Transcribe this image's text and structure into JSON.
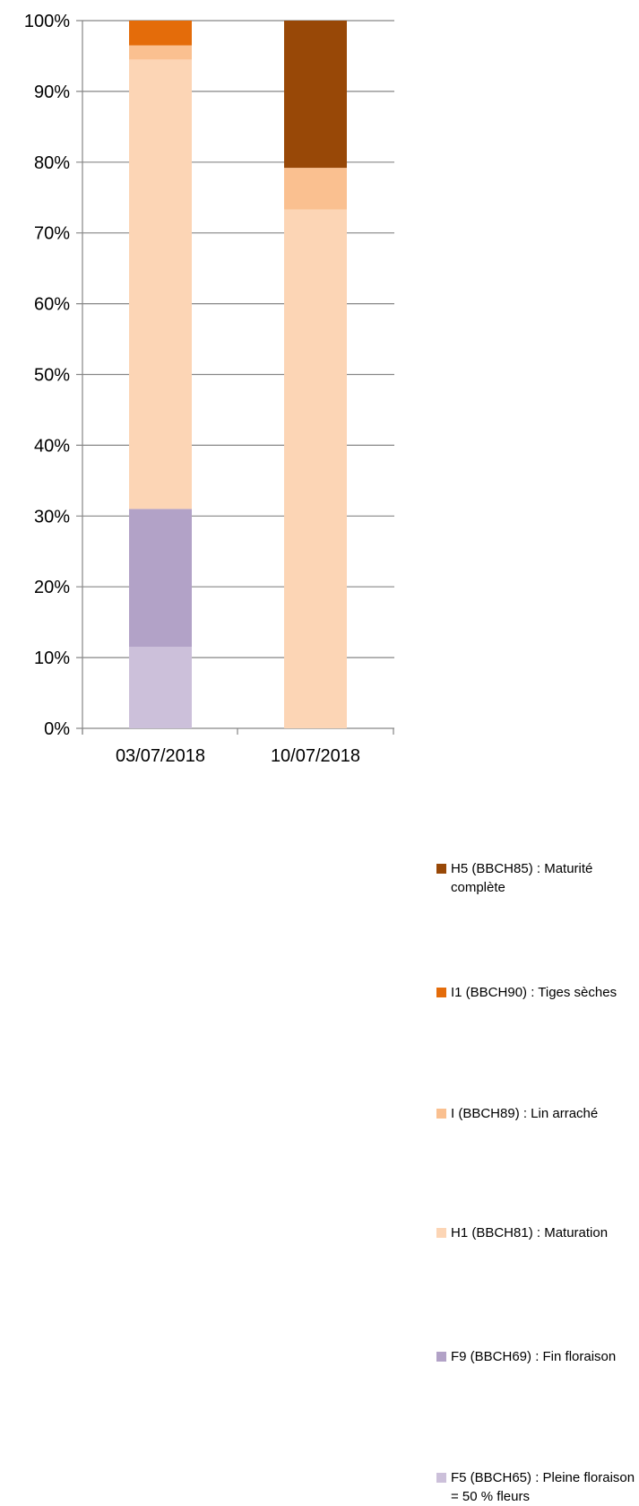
{
  "chart_data": {
    "type": "bar",
    "stacked": true,
    "percent": true,
    "categories": [
      "03/07/2018",
      "10/07/2018"
    ],
    "series": [
      {
        "name": "F5 (BBCH65) : Pleine floraison = 50 % fleurs",
        "color": "#ccc0da",
        "values": [
          11.5,
          0
        ]
      },
      {
        "name": "F9 (BBCH69) : Fin floraison",
        "color": "#b2a2c7",
        "values": [
          19.5,
          0
        ]
      },
      {
        "name": "H1 (BBCH81) : Maturation",
        "color": "#fcd5b5",
        "values": [
          63.5,
          73.3
        ]
      },
      {
        "name": "I (BBCH89) : Lin arraché",
        "color": "#fac090",
        "values": [
          2.0,
          5.9
        ]
      },
      {
        "name": "I1 (BBCH90) : Tiges sèches",
        "color": "#e46c0a",
        "values": [
          3.5,
          0
        ]
      },
      {
        "name": "H5 (BBCH85) : Maturité complète",
        "color": "#984807",
        "values": [
          0,
          20.8
        ]
      }
    ],
    "y_ticks": [
      "0%",
      "10%",
      "20%",
      "30%",
      "40%",
      "50%",
      "60%",
      "70%",
      "80%",
      "90%",
      "100%"
    ],
    "ylim": [
      0,
      100
    ],
    "grid": true,
    "legend_position": "right",
    "legend_order": [
      "H5 (BBCH85) : Maturité complète",
      "I1 (BBCH90) : Tiges sèches",
      "I (BBCH89) : Lin arraché",
      "H1 (BBCH81) : Maturation",
      "F9 (BBCH69) : Fin floraison",
      "F5 (BBCH65) : Pleine floraison = 50 % fleurs"
    ]
  }
}
